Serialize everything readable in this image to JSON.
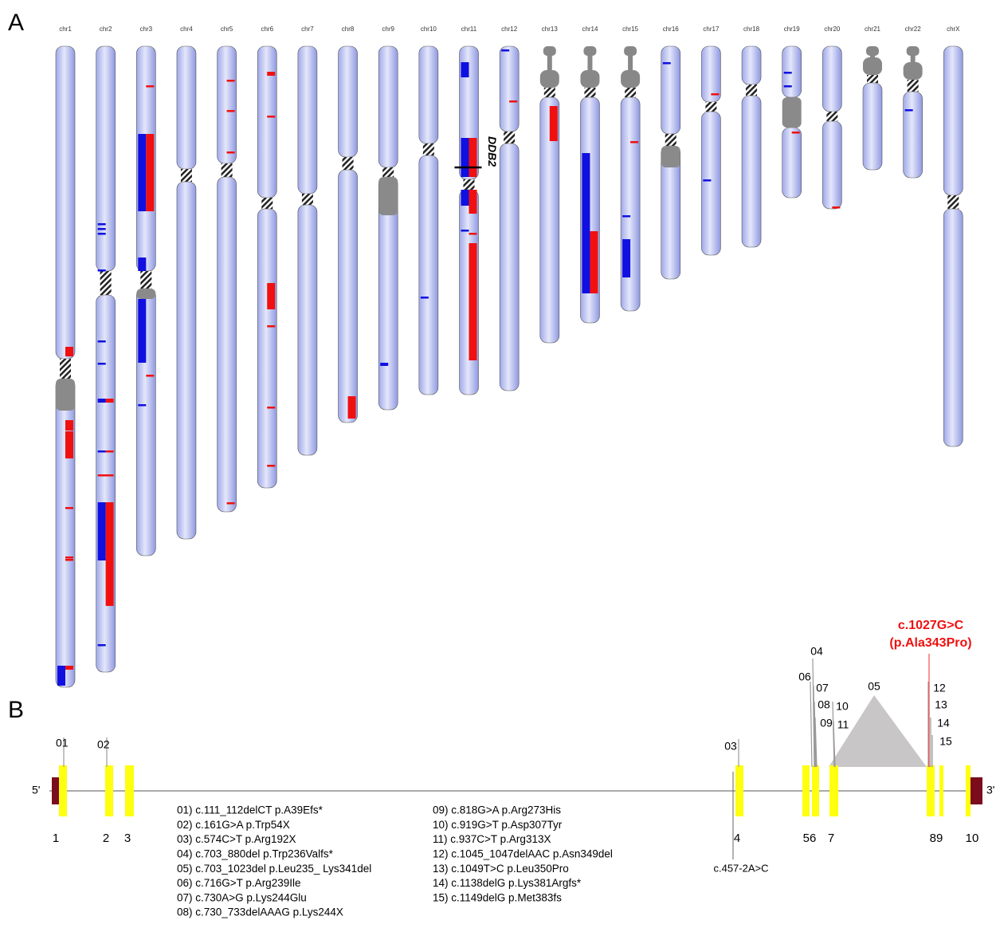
{
  "panel_labels": [
    "A",
    "B"
  ],
  "chromosomes": [
    "chr1",
    "chr2",
    "chr3",
    "chr4",
    "chr5",
    "chr6",
    "chr7",
    "chr8",
    "chr9",
    "chr10",
    "chr11",
    "chr12",
    "chr13",
    "chr14",
    "chr15",
    "chr16",
    "chr17",
    "chr18",
    "chr19",
    "chr20",
    "chr21",
    "chr22",
    "chrX"
  ],
  "gene_marker": "DDB2",
  "gene": {
    "five_prime": "5'",
    "three_prime": "3'",
    "exons": [
      "1",
      "2",
      "3",
      "4",
      "56",
      "7",
      "89",
      "10"
    ],
    "mutation_tags": [
      "01",
      "02",
      "03",
      "04",
      "05",
      "06",
      "07",
      "08",
      "09",
      "10",
      "11",
      "12",
      "13",
      "14",
      "15"
    ],
    "highlight": [
      "c.1027G>C",
      "(p.Ala343Pro)"
    ],
    "intronic_label": "c.457-2A>C"
  },
  "mutations": [
    "01) c.111_112delCT p.A39Efs*",
    "02) c.161G>A p.Trp54X",
    "03) c.574C>T p.Arg192X",
    "04) c.703_880del p.Trp236Valfs*",
    "05) c.703_1023del p.Leu235_ Lys341del",
    "06) c.716G>T p.Arg239Ile",
    "07) c.730A>G p.Lys244Glu",
    "08) c.730_733delAAAG p.Lys244X",
    "09) c.818G>A p.Arg273His",
    "10) c.919G>T p.Asp307Tyr",
    "11) c.937C>T p.Arg313X",
    "12) c.1045_1047delAAC p.Asn349del",
    "13) c.1049T>C p.Leu350Pro",
    "14) c.1138delG p.Lys381Argfs*",
    "15) c.1149delG p.Met383fs"
  ]
}
